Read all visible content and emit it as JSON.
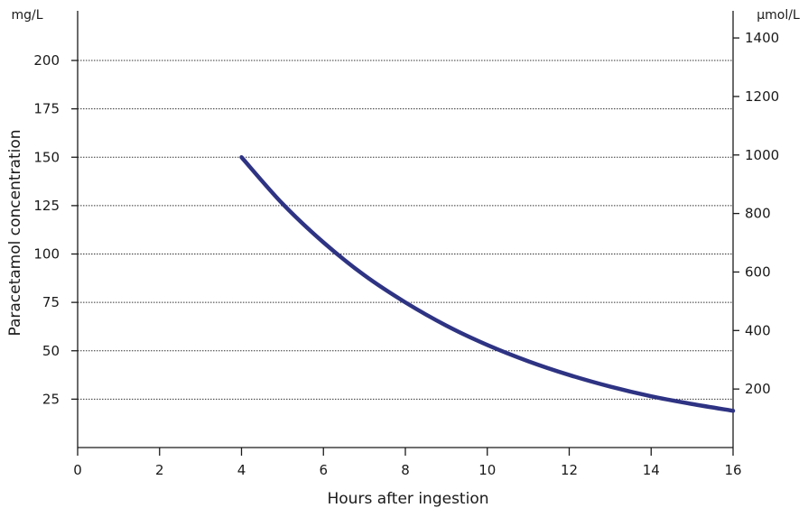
{
  "chart_data": {
    "type": "line",
    "left_unit": "mg/L",
    "right_unit": "µmol/L",
    "ylabel": "Paracetamol concentration",
    "xlabel": "Hours after ingestion",
    "xlim": [
      0,
      16
    ],
    "ylim": [
      0,
      215
    ],
    "x_ticks": [
      "0",
      "2",
      "4",
      "6",
      "8",
      "10",
      "12",
      "14",
      "16"
    ],
    "y_ticks": [
      "25",
      "50",
      "75",
      "100",
      "125",
      "150",
      "175",
      "200"
    ],
    "right_ticks": [
      "200",
      "400",
      "600",
      "800",
      "1000",
      "1200",
      "1400"
    ],
    "grid": true,
    "line_color": "#2e3383",
    "series": [
      {
        "x": [
          4,
          5,
          6,
          7,
          8,
          9,
          10,
          11,
          12,
          13,
          14,
          15,
          16
        ],
        "y": [
          150,
          126,
          106,
          89,
          75,
          63,
          53,
          44.6,
          37.5,
          31.5,
          26.5,
          22.5,
          19
        ]
      }
    ]
  }
}
